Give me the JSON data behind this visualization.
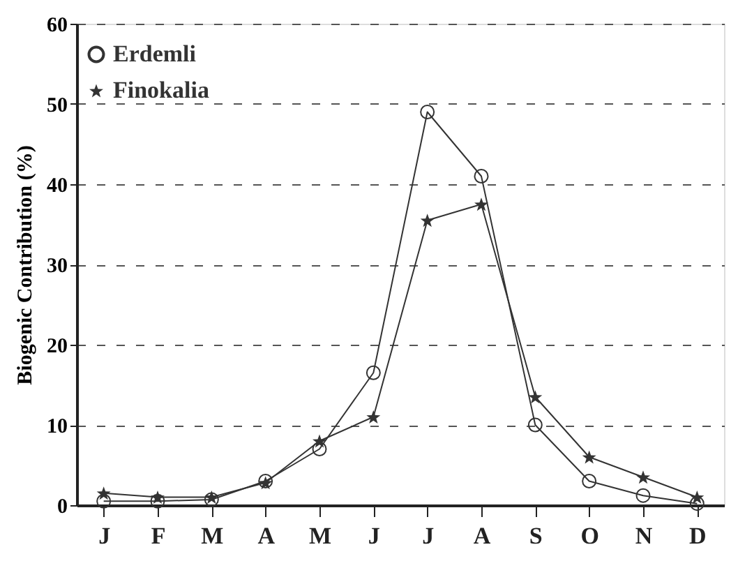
{
  "chart_data": {
    "type": "line",
    "ylabel": "Biogenic Contribution (%)",
    "categories": [
      "J",
      "F",
      "M",
      "A",
      "M",
      "J",
      "J",
      "A",
      "S",
      "O",
      "N",
      "D"
    ],
    "ylim": [
      0,
      60
    ],
    "yticks": [
      0,
      10,
      20,
      30,
      40,
      50,
      60
    ],
    "grid": "y",
    "legend": "top left",
    "series": [
      {
        "name": "Erdemli",
        "color": "#333333",
        "marker": "circle",
        "values": [
          0.5,
          0.5,
          0.7,
          3,
          7,
          16.5,
          49,
          41,
          10,
          3,
          1.2,
          0.2
        ]
      },
      {
        "name": "Finokalia",
        "color": "#333333",
        "marker": "star",
        "values": [
          1.5,
          1,
          1,
          2.8,
          8,
          11,
          35.5,
          37.5,
          13.5,
          6,
          3.5,
          1
        ]
      }
    ]
  }
}
